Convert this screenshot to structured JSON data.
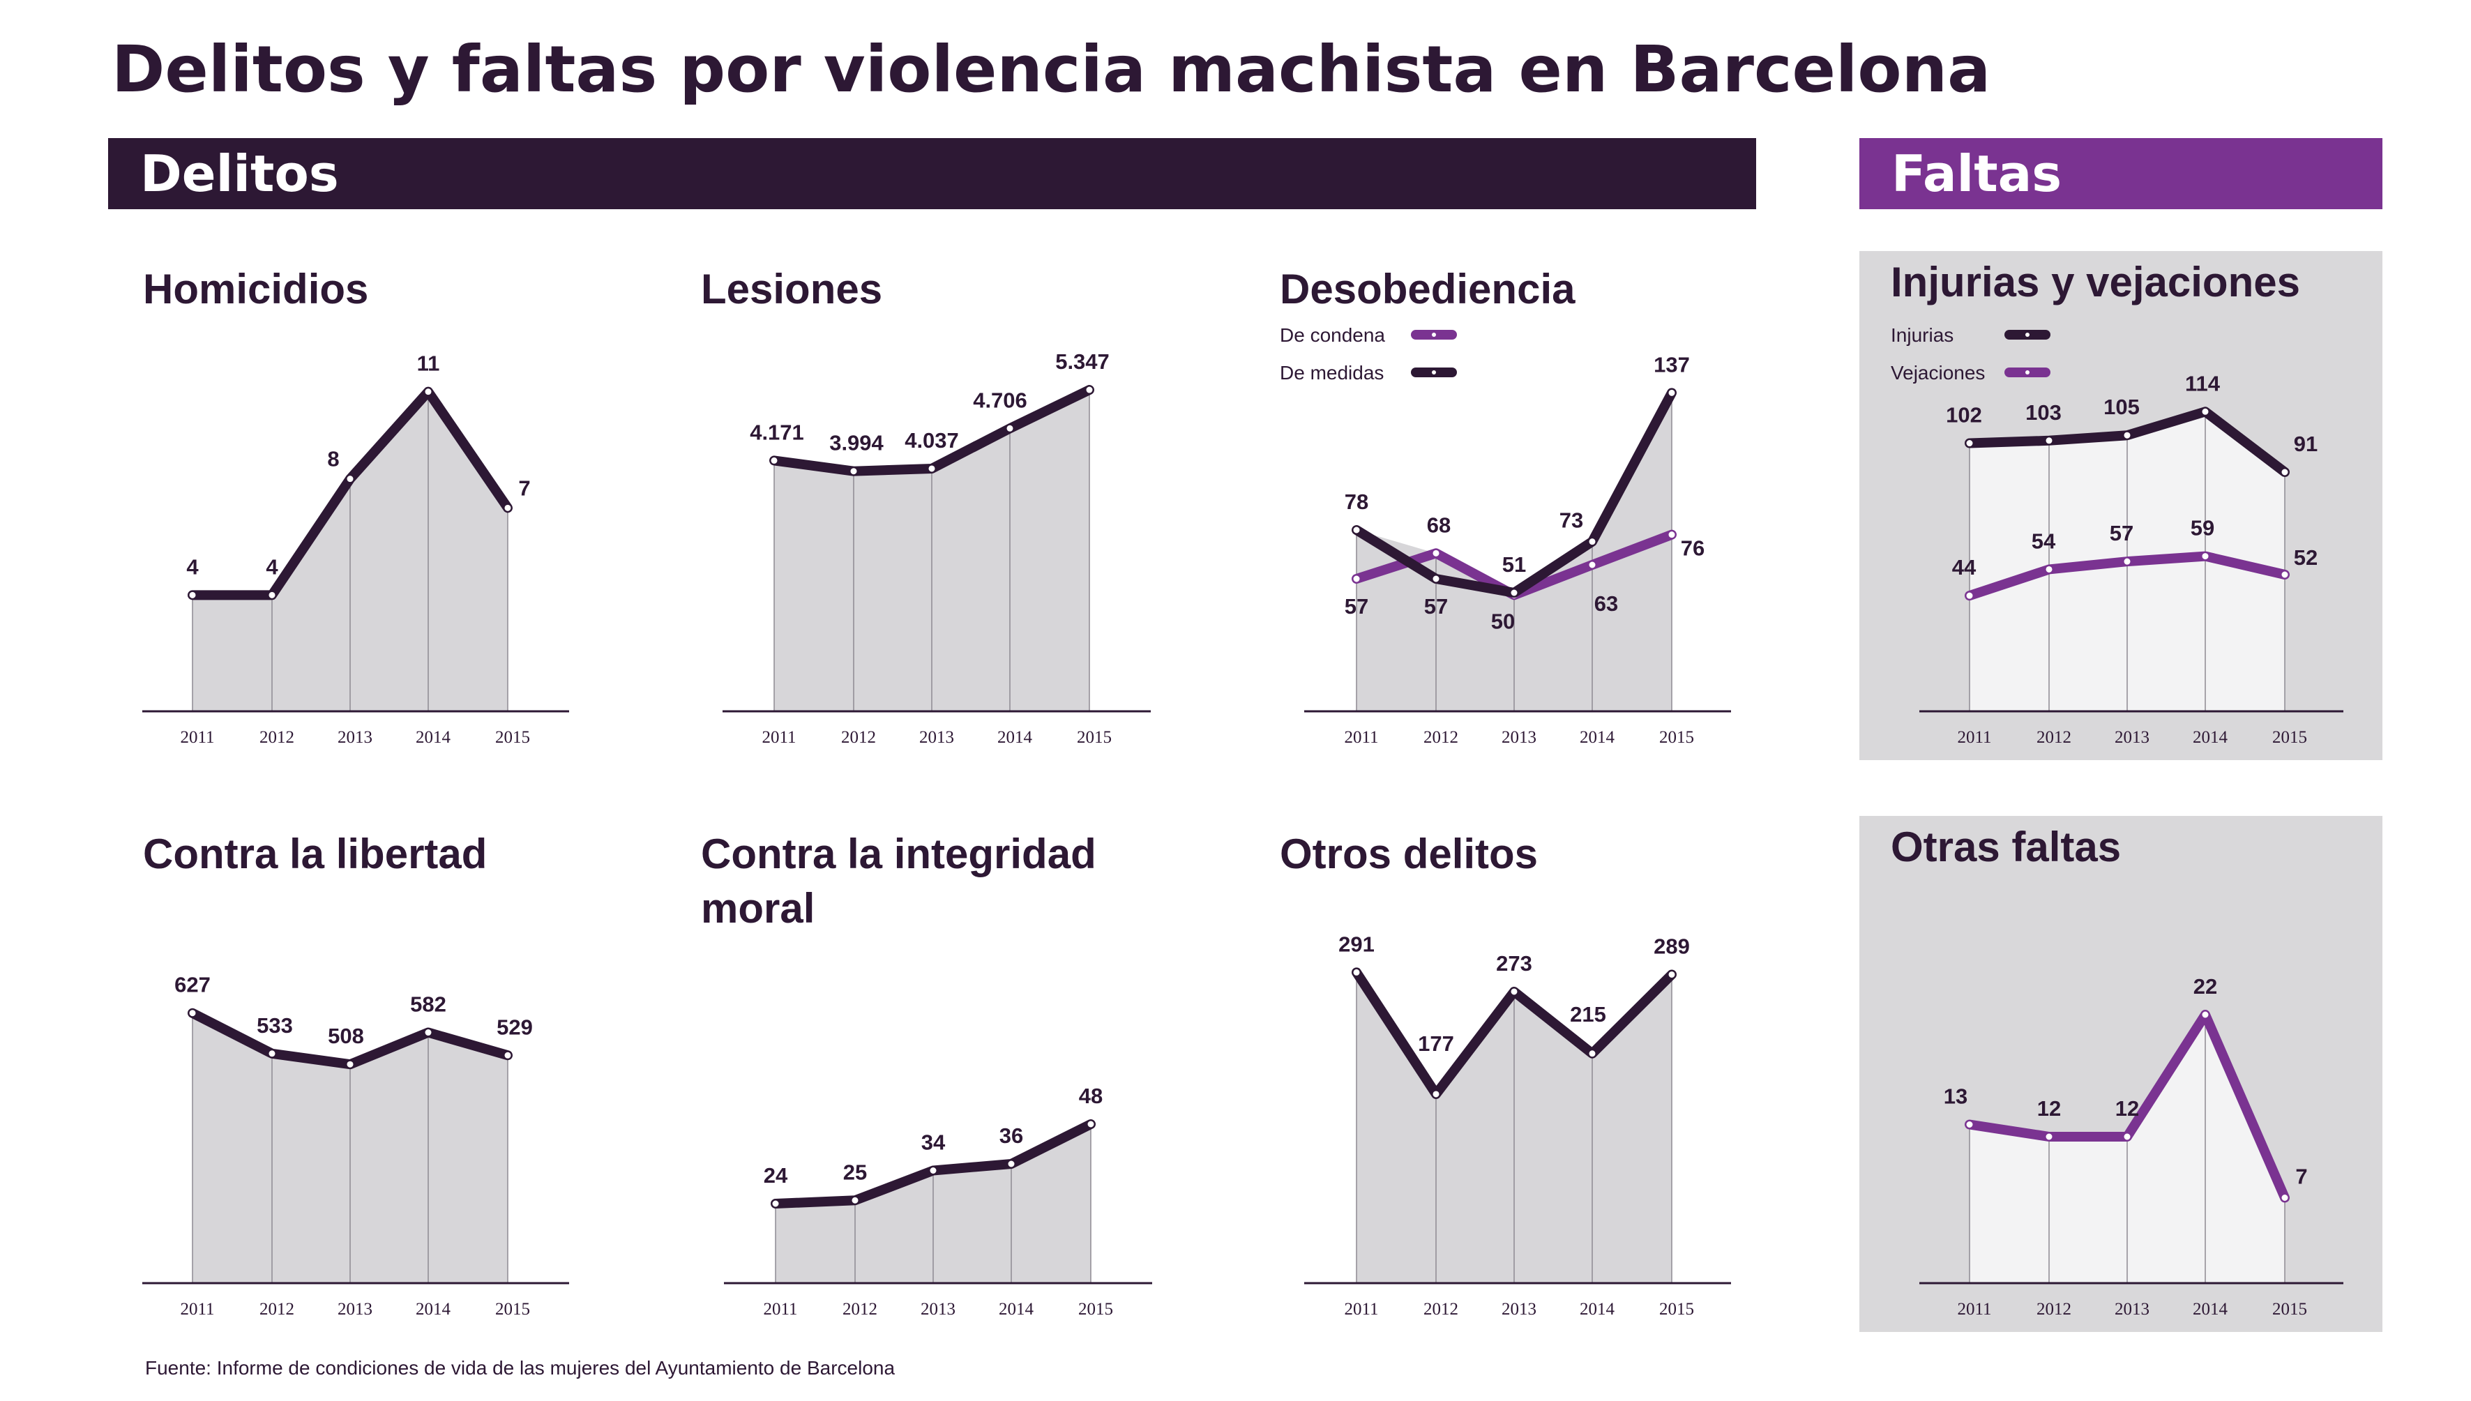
{
  "title": "Delitos y faltas por violencia machista en Barcelona",
  "sections": {
    "delitos": "Delitos",
    "faltas": "Faltas"
  },
  "source": "Fuente: Informe de condiciones de vida de las mujeres del Ayuntamiento de Barcelona",
  "colors": {
    "dark": "#2d1834",
    "purple": "#7a3391",
    "area": "#d7d6d9",
    "panel": "#d9d8da",
    "panel_area": "#f3f3f4"
  },
  "chart_data": [
    {
      "type": "area",
      "title": "Homicidios",
      "categories": [
        "2011",
        "2012",
        "2013",
        "2014",
        "2015"
      ],
      "ylim": [
        0,
        12
      ],
      "series": [
        {
          "values": [
            4,
            4,
            8,
            11,
            7
          ],
          "labels": [
            "4",
            "4",
            "8",
            "11",
            "7"
          ]
        }
      ]
    },
    {
      "type": "area",
      "title": "Lesiones",
      "categories": [
        "2011",
        "2012",
        "2013",
        "2014",
        "2015"
      ],
      "ylim": [
        0,
        5800
      ],
      "series": [
        {
          "values": [
            4171,
            3994,
            4037,
            4706,
            5347
          ],
          "labels": [
            "4.171",
            "3.994",
            "4.037",
            "4.706",
            "5.347"
          ]
        }
      ]
    },
    {
      "type": "line",
      "title": "Desobediencia",
      "categories": [
        "2011",
        "2012",
        "2013",
        "2014",
        "2015"
      ],
      "ylim": [
        0,
        150
      ],
      "series": [
        {
          "name": "De condena",
          "values": [
            57,
            68,
            50,
            63,
            76
          ],
          "labels": [
            "57",
            "68",
            "50",
            "63",
            "76"
          ]
        },
        {
          "name": "De medidas",
          "values": [
            78,
            57,
            51,
            73,
            137
          ],
          "labels": [
            "78",
            "57",
            "51",
            "73",
            "137"
          ]
        }
      ]
    },
    {
      "type": "line",
      "title": "Injurias y vejaciones",
      "categories": [
        "2011",
        "2012",
        "2013",
        "2014",
        "2015"
      ],
      "ylim": [
        0,
        130
      ],
      "series": [
        {
          "name": "Injurias",
          "values": [
            102,
            103,
            105,
            114,
            91
          ],
          "labels": [
            "102",
            "103",
            "105",
            "114",
            "91"
          ]
        },
        {
          "name": "Vejaciones",
          "values": [
            44,
            54,
            57,
            59,
            52
          ],
          "labels": [
            "44",
            "54",
            "57",
            "59",
            "52"
          ]
        }
      ]
    },
    {
      "type": "area",
      "title": "Contra la libertad",
      "categories": [
        "2011",
        "2012",
        "2013",
        "2014",
        "2015"
      ],
      "ylim": [
        0,
        680
      ],
      "series": [
        {
          "values": [
            627,
            533,
            508,
            582,
            529
          ],
          "labels": [
            "627",
            "533",
            "508",
            "582",
            "529"
          ]
        }
      ]
    },
    {
      "type": "area",
      "title": "Contra la integridad moral",
      "categories": [
        "2011",
        "2012",
        "2013",
        "2014",
        "2015"
      ],
      "ylim": [
        0,
        80
      ],
      "series": [
        {
          "values": [
            24,
            25,
            34,
            36,
            48
          ],
          "labels": [
            "24",
            "25",
            "34",
            "36",
            "48"
          ]
        }
      ]
    },
    {
      "type": "area",
      "title": "Otros delitos",
      "categories": [
        "2011",
        "2012",
        "2013",
        "2014",
        "2015"
      ],
      "ylim": [
        0,
        320
      ],
      "series": [
        {
          "values": [
            291,
            177,
            273,
            215,
            289
          ],
          "labels": [
            "291",
            "177",
            "273",
            "215",
            "289"
          ]
        }
      ]
    },
    {
      "type": "area",
      "title": "Otras faltas",
      "categories": [
        "2011",
        "2012",
        "2013",
        "2014",
        "2015"
      ],
      "ylim": [
        0,
        24
      ],
      "series": [
        {
          "values": [
            13,
            12,
            12,
            22,
            7
          ],
          "labels": [
            "13",
            "12",
            "12",
            "22",
            "7"
          ]
        }
      ]
    }
  ]
}
